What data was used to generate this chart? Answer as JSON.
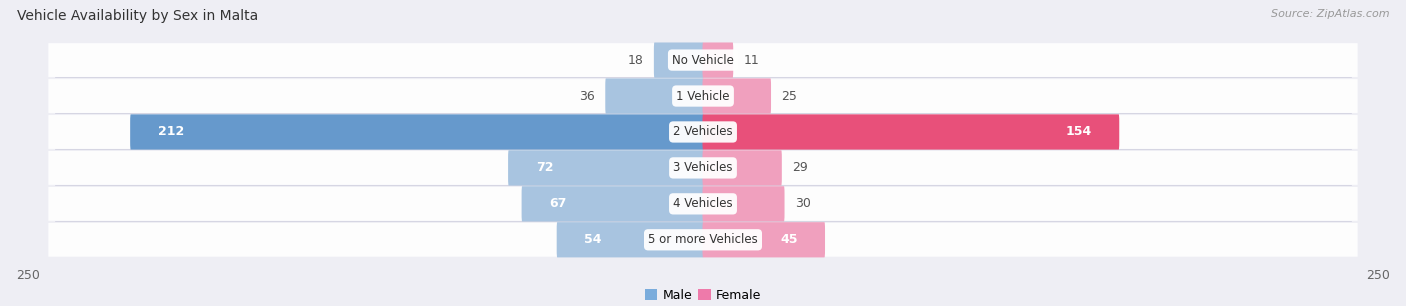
{
  "title": "Vehicle Availability by Sex in Malta",
  "source": "Source: ZipAtlas.com",
  "categories": [
    "No Vehicle",
    "1 Vehicle",
    "2 Vehicles",
    "3 Vehicles",
    "4 Vehicles",
    "5 or more Vehicles"
  ],
  "male_values": [
    18,
    36,
    212,
    72,
    67,
    54
  ],
  "female_values": [
    11,
    25,
    154,
    29,
    30,
    45
  ],
  "male_color_light": "#a8c4e0",
  "male_color_strong": "#6699cc",
  "female_color_light": "#f0a0be",
  "female_color_strong": "#e8507a",
  "male_legend_color": "#7aacdc",
  "female_legend_color": "#ee7aaa",
  "x_max": 250,
  "background_color": "#eeeef4",
  "row_bg_color": "#ffffff",
  "outer_label_color": "#555555",
  "title_fontsize": 10,
  "source_fontsize": 8,
  "label_fontsize": 9,
  "category_fontsize": 8.5,
  "threshold_inside": 40
}
